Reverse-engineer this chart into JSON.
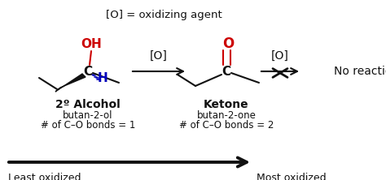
{
  "bg_color": "#ffffff",
  "title_text": "[O] = oxidizing agent",
  "red_color": "#cc0000",
  "blue_color": "#0000bb",
  "black_color": "#111111",
  "alcohol_label": "2º Alcohol",
  "alcohol_name": "butan-2-ol",
  "alcohol_bonds": "# of C–O bonds = 1",
  "ketone_label": "Ketone",
  "ketone_name": "butan-2-one",
  "ketone_bonds": "# of C–O bonds = 2",
  "arrow1_label": "[O]",
  "arrow2_label": "[O]",
  "no_rxn_text": "No reaction",
  "least_oxidized": "Least oxidized",
  "most_oxidized": "Most oxidized"
}
